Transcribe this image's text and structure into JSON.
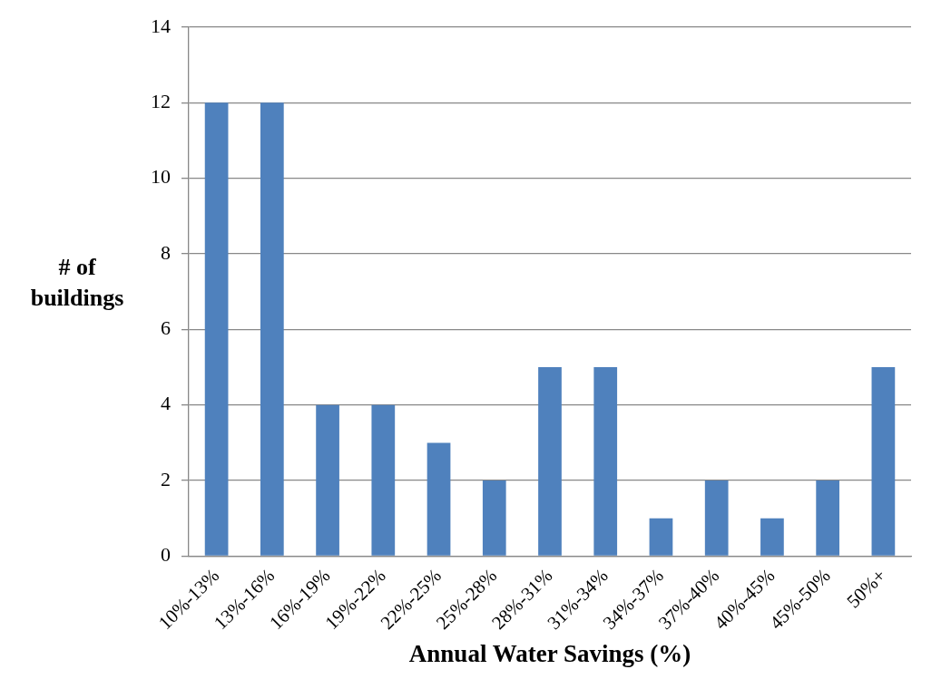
{
  "chart_data": {
    "type": "bar",
    "xlabel": "Annual Water Savings (%)",
    "ylabel": "# of buildings",
    "categories": [
      "10%-13%",
      "13%-16%",
      "16%-19%",
      "19%-22%",
      "22%-25%",
      "25%-28%",
      "28%-31%",
      "31%-34%",
      "34%-37%",
      "37%-40%",
      "40%-45%",
      "45%-50%",
      "50%+"
    ],
    "values": [
      12,
      12,
      4,
      4,
      3,
      2,
      5,
      5,
      1,
      2,
      1,
      2,
      5
    ],
    "color": "#4f81bd",
    "ylim": [
      0,
      14
    ],
    "yticks": [
      0,
      2,
      4,
      6,
      8,
      10,
      12,
      14
    ],
    "grid": "y",
    "legend": false
  }
}
